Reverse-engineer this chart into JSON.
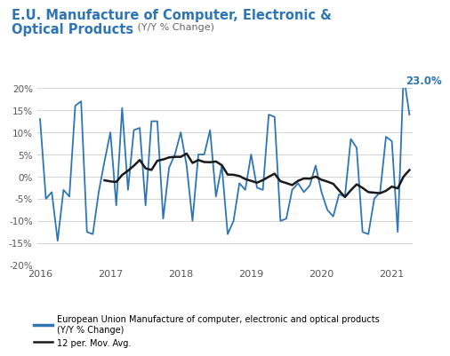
{
  "title_line1": "E.U. Manufacture of Computer, Electronic &",
  "title_line2": "Optical Products",
  "title_sub": " (Y/Y % Change)",
  "bg_color": "#ffffff",
  "line_color_blue": "#2E75B6",
  "line_color_black": "#1a1a1a",
  "grid_color": "#cccccc",
  "tick_color": "#555555",
  "ylim": [
    -20,
    20
  ],
  "yticks": [
    -20,
    -15,
    -10,
    -5,
    0,
    5,
    10,
    15,
    20
  ],
  "ytick_labels": [
    "-20%",
    "-15%",
    "-10%",
    "-5%",
    "0%",
    "5%",
    "10%",
    "15%",
    "20%"
  ],
  "annotation_value": "23.0%",
  "legend_blue_label": "European Union Manufacture of computer, electronic and optical products\n(Y/Y % Change)",
  "legend_black_label": "12 per. Mov. Avg.",
  "blue_data": [
    13.0,
    -5.0,
    -3.5,
    -14.5,
    -3.0,
    -4.5,
    16.0,
    17.0,
    -12.5,
    -13.0,
    -3.5,
    3.5,
    10.0,
    -6.5,
    15.5,
    -3.0,
    10.5,
    11.0,
    -6.5,
    12.5,
    12.5,
    -9.5,
    2.0,
    5.0,
    10.0,
    2.5,
    -10.0,
    5.0,
    5.0,
    10.5,
    -4.5,
    2.5,
    -13.0,
    -10.0,
    -1.5,
    -3.0,
    5.0,
    -2.5,
    -3.0,
    14.0,
    13.5,
    -10.0,
    -9.5,
    -3.0,
    -1.5,
    -3.5,
    -2.0,
    2.5,
    -3.5,
    -7.5,
    -9.0,
    -4.0,
    -4.5,
    8.5,
    6.5,
    -12.5,
    -13.0,
    -5.0,
    -3.5,
    9.0,
    8.0,
    -12.5,
    23.0,
    14.0
  ],
  "x_start_year": 2016,
  "x_tick_years": [
    2016,
    2017,
    2018,
    2019,
    2020,
    2021
  ]
}
